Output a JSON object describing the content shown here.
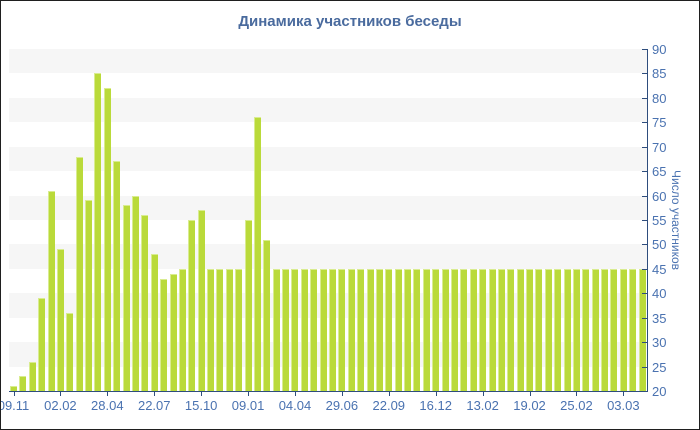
{
  "title": "Динамика участников беседы",
  "colors": {
    "title": "#4a6b9e",
    "tick_label": "#4a72b0",
    "axis_line": "#2e4d7d",
    "bar": "#bada3a",
    "bar_edge": "#d9ec90",
    "stripe": "#f6f6f6",
    "background": "#ffffff"
  },
  "chart_data": {
    "type": "bar",
    "title": "Динамика участников беседы",
    "xlabel": "",
    "ylabel": "Число участников",
    "ylim": [
      20,
      90
    ],
    "ytick_step": 5,
    "grid": "horizontal-stripes",
    "legend": "none",
    "y_axis_side": "right",
    "x_tick_every": 5,
    "x_tick_labels": [
      "09.11",
      "02.02",
      "28.04",
      "22.07",
      "15.10",
      "09.01",
      "04.04",
      "29.06",
      "22.09",
      "16.12",
      "13.02",
      "19.02",
      "25.02",
      "03.03"
    ],
    "values": [
      21,
      23,
      26,
      39,
      61,
      49,
      36,
      68,
      59,
      85,
      82,
      67,
      58,
      60,
      56,
      48,
      43,
      44,
      45,
      55,
      57,
      45,
      45,
      45,
      45,
      55,
      76,
      51,
      45,
      45,
      45,
      45,
      45,
      45,
      45,
      45,
      45,
      45,
      45,
      45,
      45,
      45,
      45,
      45,
      45,
      45,
      45,
      45,
      45,
      45,
      45,
      45,
      45,
      45,
      45,
      45,
      45,
      45,
      45,
      45,
      45,
      45,
      45,
      45,
      45,
      45,
      45,
      45
    ]
  }
}
